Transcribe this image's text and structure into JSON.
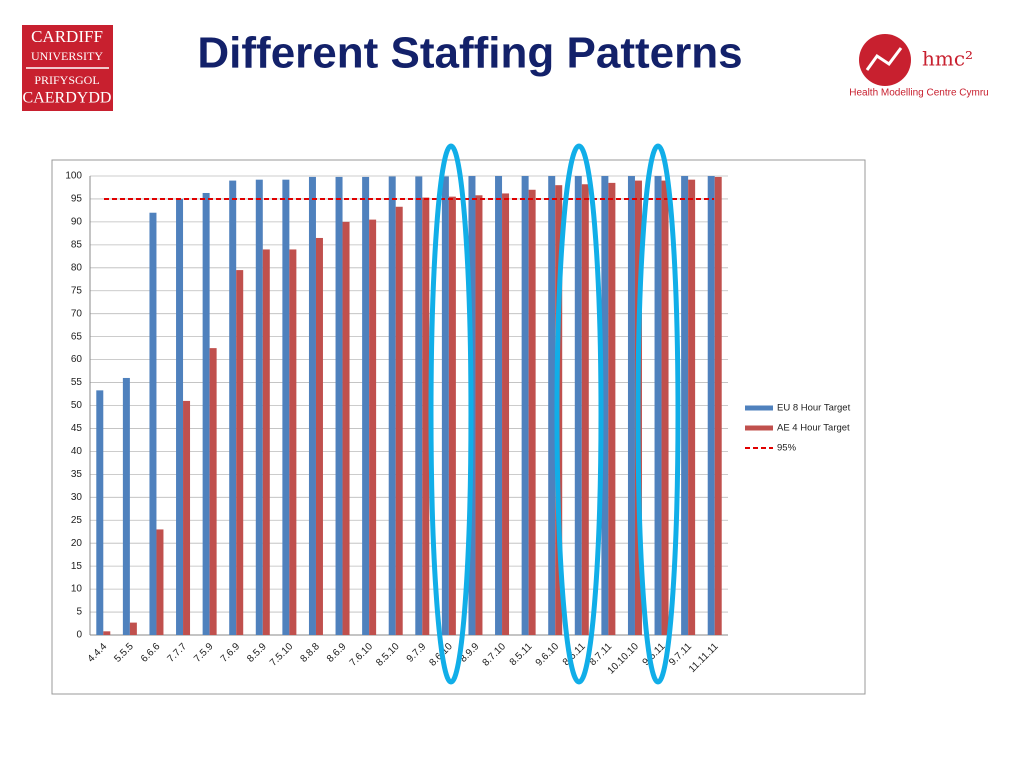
{
  "logos": {
    "university": [
      "CARDIFF",
      "UNIVERSITY",
      "PRIFYSGOL",
      "CAERDYDD"
    ],
    "centre_mark": "hmc²",
    "centre_name": "Health Modelling Centre Cymru"
  },
  "chart_data": {
    "type": "bar",
    "title": "Different Staffing Patterns",
    "categories": [
      "4.4.4",
      "5.5.5",
      "6.6.6",
      "7.7.7",
      "7.5.9",
      "7.6.9",
      "8.5.9",
      "7.5.10",
      "8.8.8",
      "8.6.9",
      "7.6.10",
      "8.5.10",
      "9.7.9",
      "8.6.10",
      "8.9.9",
      "8.7.10",
      "8.5.11",
      "9.6.10",
      "8.6.11",
      "8.7.11",
      "10.10.10",
      "9.5.11",
      "9.7.11",
      "11.11.11"
    ],
    "series": [
      {
        "name": "EU 8 Hour Target",
        "color": "#4f81bd",
        "values": [
          53.3,
          56,
          92,
          95,
          96.3,
          99,
          99.2,
          99.2,
          99.8,
          99.8,
          99.8,
          99.9,
          99.9,
          99.9,
          100,
          100,
          100,
          100,
          100,
          100,
          100,
          100,
          100,
          100
        ]
      },
      {
        "name": "AE 4 Hour Target",
        "color": "#c0504d",
        "values": [
          0.8,
          2.7,
          23,
          51,
          62.5,
          79.5,
          84,
          84,
          86.5,
          90,
          90.5,
          93.3,
          95.3,
          95.5,
          95.8,
          96.2,
          97,
          98,
          98.2,
          98.5,
          99,
          99,
          99.2,
          99.8
        ]
      }
    ],
    "target_line": {
      "name": "95%",
      "value": 95,
      "color": "#e00000"
    },
    "ylim": [
      0,
      100
    ],
    "yticks": [
      0,
      5,
      10,
      15,
      20,
      25,
      30,
      35,
      40,
      45,
      50,
      55,
      60,
      65,
      70,
      75,
      80,
      85,
      90,
      95,
      100
    ],
    "grid": true,
    "legend": "right"
  }
}
